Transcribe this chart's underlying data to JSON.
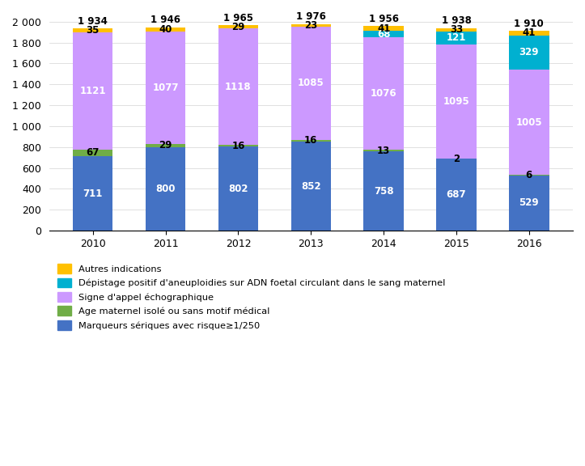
{
  "years": [
    "2010",
    "2011",
    "2012",
    "2013",
    "2014",
    "2015",
    "2016"
  ],
  "totals": [
    1934,
    1946,
    1965,
    1976,
    1956,
    1938,
    1910
  ],
  "marqueurs": [
    711,
    800,
    802,
    852,
    758,
    687,
    529
  ],
  "age_maternel": [
    67,
    29,
    16,
    16,
    13,
    2,
    6
  ],
  "signe_appel": [
    1121,
    1077,
    1118,
    1085,
    1076,
    1095,
    1005
  ],
  "depistage_adn": [
    0,
    0,
    0,
    0,
    68,
    121,
    329
  ],
  "autres": [
    35,
    40,
    29,
    23,
    41,
    33,
    41
  ],
  "color_marqueurs": "#4472C4",
  "color_age": "#70AD47",
  "color_signe": "#CC99FF",
  "color_adn": "#00B0D0",
  "color_autres": "#FFC000",
  "legend_labels": [
    "Autres indications",
    "Dépistage positif d'aneuploidies sur ADN foetal circulant dans le sang maternel",
    "Signe d'appel échographique",
    "Age maternel isolé ou sans motif médical",
    "Marqueurs sériques avec risque≥1/250"
  ],
  "ylim": [
    0,
    2000
  ],
  "yticks": [
    0,
    200,
    400,
    600,
    800,
    1000,
    1200,
    1400,
    1600,
    1800,
    2000
  ]
}
